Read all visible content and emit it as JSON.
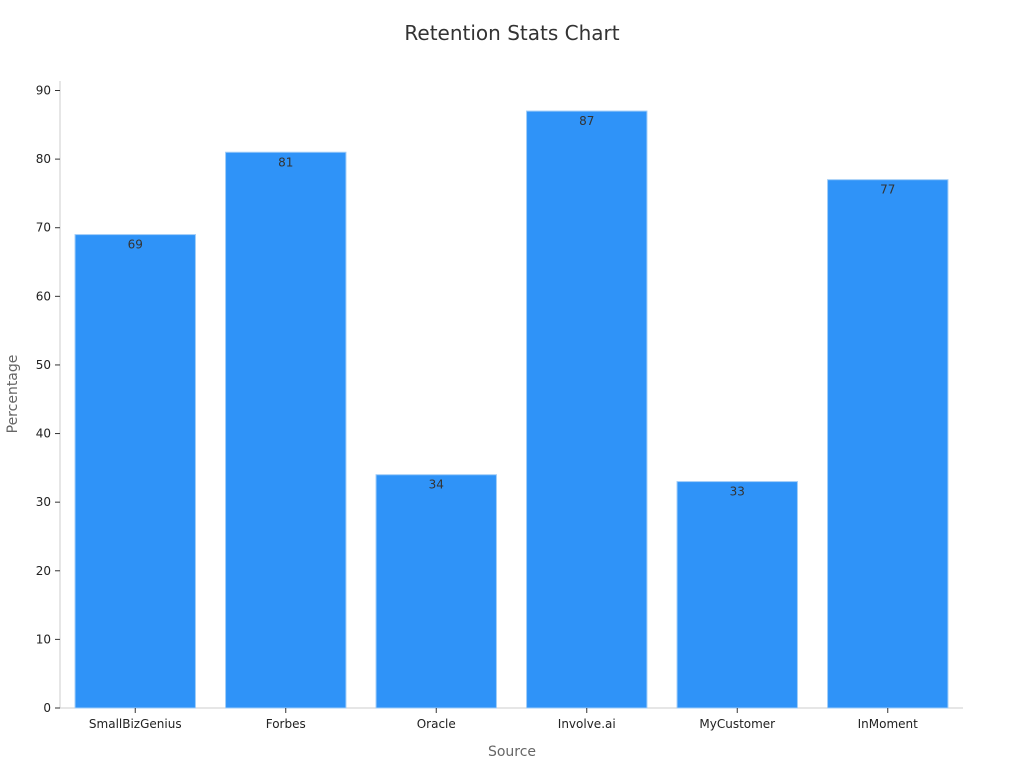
{
  "chart_data": {
    "type": "bar",
    "title": "Retention Stats Chart",
    "xlabel": "Source",
    "ylabel": "Percentage",
    "categories": [
      "SmallBizGenius",
      "Forbes",
      "Oracle",
      "Involve.ai",
      "MyCustomer",
      "InMoment"
    ],
    "values": [
      69,
      81,
      34,
      87,
      33,
      77
    ],
    "ylim": [
      0,
      90
    ],
    "yticks": [
      0,
      10,
      20,
      30,
      40,
      50,
      60,
      70,
      80,
      90
    ],
    "grid": false,
    "legend": "none",
    "bar_color": "#2f93f8",
    "bar_edge_color": "#9ecbf7"
  }
}
